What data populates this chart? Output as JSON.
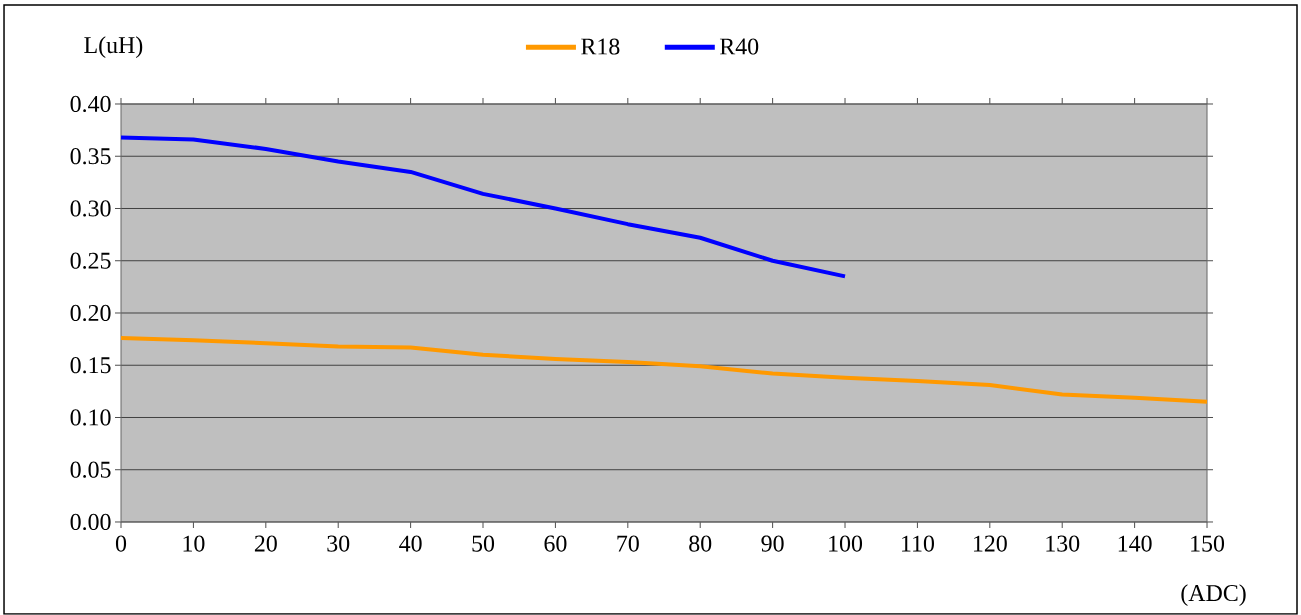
{
  "chart_data": {
    "type": "line",
    "xlabel": "(ADC)",
    "ylabel": "L(uH)",
    "x": [
      0,
      10,
      20,
      30,
      40,
      50,
      60,
      70,
      80,
      90,
      100,
      110,
      120,
      130,
      140,
      150
    ],
    "series": [
      {
        "name": "R18",
        "color": "#ff9900",
        "values": [
          0.176,
          0.174,
          0.171,
          0.168,
          0.167,
          0.16,
          0.156,
          0.153,
          0.149,
          0.142,
          0.138,
          0.135,
          0.131,
          0.122,
          0.119,
          0.115
        ]
      },
      {
        "name": "R40",
        "color": "#0000ff",
        "x": [
          0,
          10,
          20,
          30,
          40,
          50,
          60,
          70,
          80,
          90,
          100
        ],
        "values": [
          0.368,
          0.366,
          0.357,
          0.345,
          0.335,
          0.314,
          0.3,
          0.285,
          0.272,
          0.25,
          0.235
        ]
      }
    ],
    "xlim": [
      0,
      150
    ],
    "ylim": [
      0,
      0.4
    ],
    "xticks": [
      0,
      10,
      20,
      30,
      40,
      50,
      60,
      70,
      80,
      90,
      100,
      110,
      120,
      130,
      140,
      150
    ],
    "yticks": [
      {
        "value": 0,
        "label": "0.00"
      },
      {
        "value": 0.05,
        "label": "0.05"
      },
      {
        "value": 0.1,
        "label": "0.10"
      },
      {
        "value": 0.15,
        "label": "0.15"
      },
      {
        "value": 0.2,
        "label": "0.20"
      },
      {
        "value": 0.25,
        "label": "0.25"
      },
      {
        "value": 0.3,
        "label": "0.30"
      },
      {
        "value": 0.35,
        "label": "0.35"
      },
      {
        "value": 0.4,
        "label": "0.40"
      }
    ],
    "grid": "y",
    "legend": "top",
    "line_style": "solid"
  }
}
